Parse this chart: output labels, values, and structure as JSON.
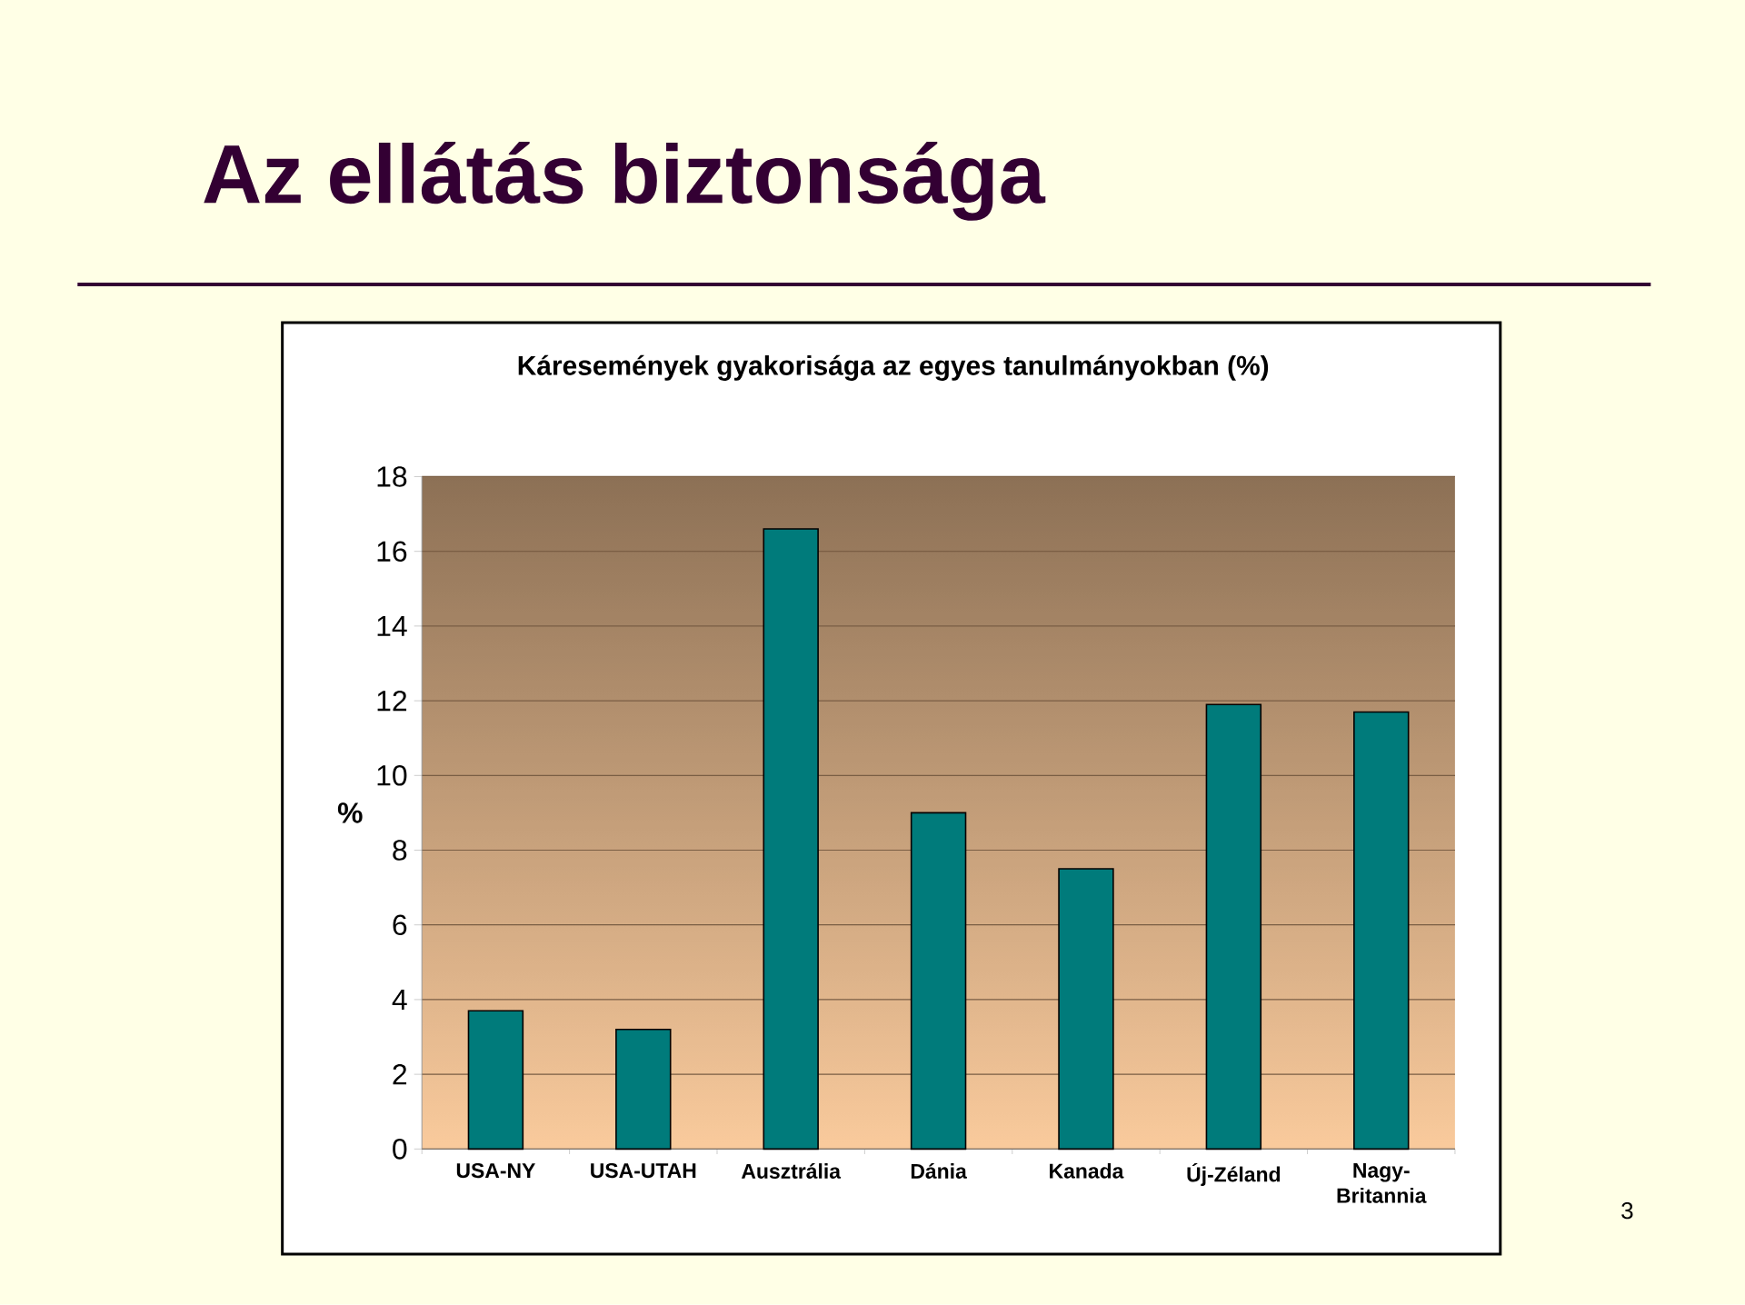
{
  "chart_data": {
    "type": "bar",
    "title": "Az ellátás biztonsága",
    "subtitle": "Káresemények gyakorisága az egyes tanulmányokban (%)",
    "ylabel": "%",
    "categories": [
      "USA-NY",
      "USA-UTAH",
      "Ausztrália",
      "Dánia",
      "Kanada",
      "Új-Zéland",
      "Nagy-Britannia"
    ],
    "values": [
      3.7,
      3.2,
      16.6,
      9.0,
      7.5,
      11.9,
      11.7
    ],
    "color": "#007b7b",
    "ylim": [
      0,
      18
    ],
    "yticks": [
      0,
      2,
      4,
      6,
      8,
      10,
      12,
      14,
      16,
      18
    ],
    "grid": "y",
    "annotations": [
      "3"
    ]
  }
}
